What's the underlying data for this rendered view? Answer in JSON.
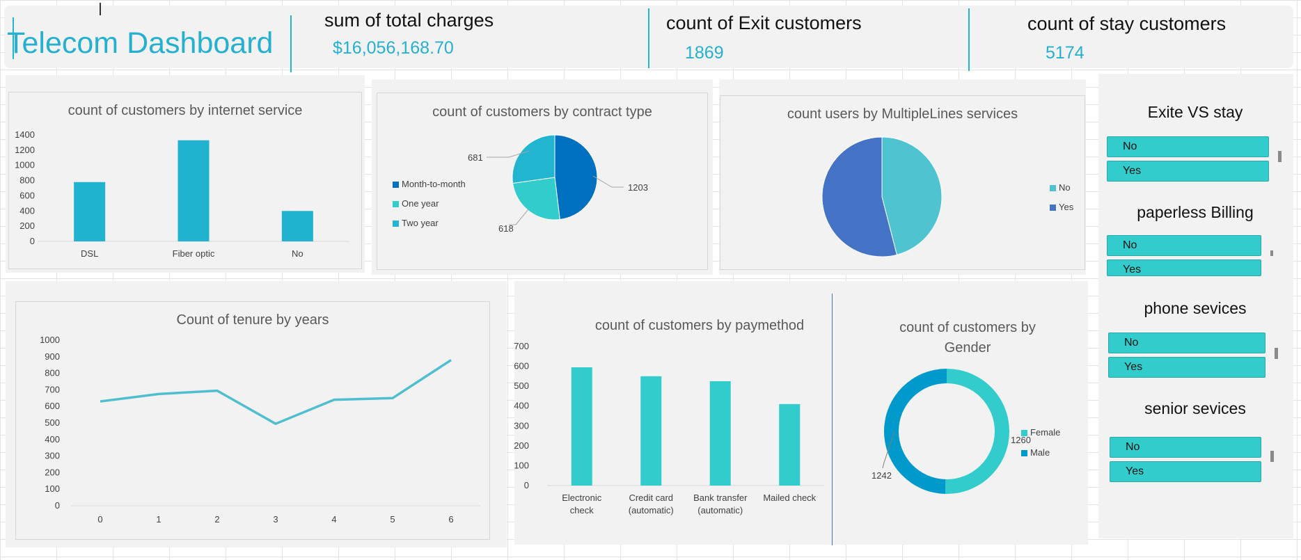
{
  "header": {
    "title": "Telecom Dashboard",
    "kpis": [
      {
        "label": "sum of total charges",
        "value": "$16,056,168.70"
      },
      {
        "label": "count of Exit customers",
        "value": "1869"
      },
      {
        "label": "count of stay customers",
        "value": "5174"
      }
    ]
  },
  "colors": {
    "accent": "#25b0d0",
    "teal": "#33cccc",
    "blue": "#4472c4",
    "dark_blue": "#0070c0",
    "panel": "#f2f2f2"
  },
  "charts": {
    "internet": {
      "title": "count of customers by internet service",
      "y_ticks": [
        "1400",
        "1200",
        "1000",
        "800",
        "600",
        "400",
        "200",
        "0"
      ]
    },
    "contract": {
      "title": "count of customers by contract type",
      "legend": [
        "Month-to-month",
        "One year",
        "Two year"
      ],
      "labels": [
        "1203",
        "618",
        "681"
      ]
    },
    "multiplelines": {
      "title": "count users by MultipleLines services",
      "legend": [
        "No",
        "Yes"
      ]
    },
    "tenure": {
      "title": "Count of tenure by years",
      "y_ticks": [
        "1000",
        "900",
        "800",
        "700",
        "600",
        "500",
        "400",
        "300",
        "200",
        "100",
        "0"
      ]
    },
    "paymethod": {
      "title": "count of customers by paymethod",
      "y_ticks": [
        "700",
        "600",
        "500",
        "400",
        "300",
        "200",
        "100",
        "0"
      ],
      "categories": [
        [
          "Electronic",
          "check"
        ],
        [
          "Credit card",
          "(automatic)"
        ],
        [
          "Bank transfer",
          "(automatic)"
        ],
        [
          "Mailed check",
          ""
        ]
      ]
    },
    "gender": {
      "title_line1": "count of customers by",
      "title_line2": "Gender",
      "legend": [
        "Female",
        "Male"
      ],
      "labels": [
        "1260",
        "1242"
      ]
    }
  },
  "slicers": [
    {
      "title": "Exite VS  stay",
      "items": [
        "No",
        "Yes"
      ]
    },
    {
      "title": "paperless Billing",
      "items": [
        "No",
        "Yes"
      ]
    },
    {
      "title": "phone sevices",
      "items": [
        "No",
        "Yes"
      ]
    },
    {
      "title": "senior  sevices",
      "items": [
        "No",
        "Yes"
      ]
    }
  ],
  "chart_data": [
    {
      "type": "bar",
      "title": "count of customers by internet service",
      "categories": [
        "DSL",
        "Fiber optic",
        "No"
      ],
      "values": [
        780,
        1330,
        400
      ],
      "ylim": [
        0,
        1400
      ],
      "grid": false
    },
    {
      "type": "pie",
      "title": "count of customers by contract type",
      "categories": [
        "Month-to-month",
        "One year",
        "Two year"
      ],
      "values": [
        1203,
        618,
        681
      ]
    },
    {
      "type": "pie",
      "title": "count users by MultipleLines services",
      "categories": [
        "No",
        "Yes"
      ],
      "values": [
        46,
        54
      ]
    },
    {
      "type": "line",
      "title": "Count of tenure by years",
      "x": [
        "0",
        "1",
        "2",
        "3",
        "4",
        "5",
        "6"
      ],
      "values": [
        630,
        675,
        695,
        495,
        640,
        650,
        880
      ],
      "ylim": [
        0,
        1000
      ]
    },
    {
      "type": "bar",
      "title": "count of customers by paymethod",
      "categories": [
        "Electronic check",
        "Credit card (automatic)",
        "Bank transfer (automatic)",
        "Mailed check"
      ],
      "values": [
        595,
        550,
        525,
        410
      ],
      "ylim": [
        0,
        700
      ]
    },
    {
      "type": "pie",
      "title": "count of customers by Gender",
      "categories": [
        "Female",
        "Male"
      ],
      "values": [
        1260,
        1242
      ],
      "donut": true,
      "legend_position": "right"
    }
  ]
}
